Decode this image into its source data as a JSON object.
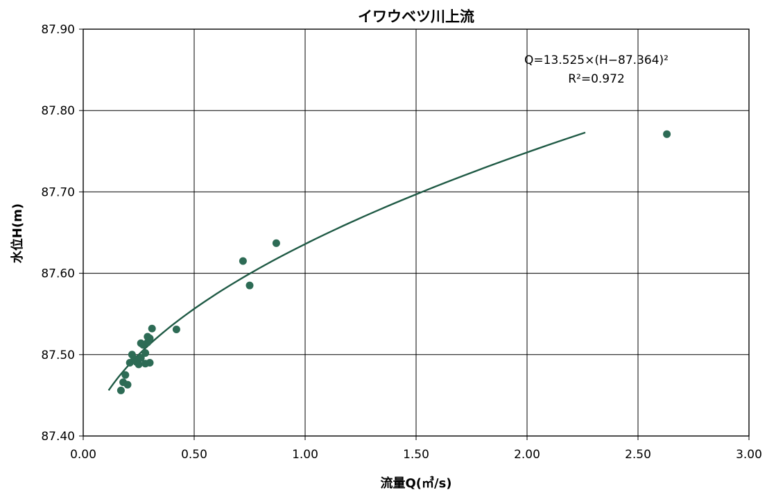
{
  "chart_data": {
    "type": "scatter",
    "title": "イワウベツ川上流",
    "xlabel": "流量Q(㎥/s)",
    "ylabel": "水位H(m)",
    "xlim": [
      0,
      3
    ],
    "ylim": [
      87.4,
      87.9
    ],
    "x_ticks": [
      "0.00",
      "0.50",
      "1.00",
      "1.50",
      "2.00",
      "2.50",
      "3.00"
    ],
    "y_ticks": [
      "87.40",
      "87.50",
      "87.60",
      "87.70",
      "87.80",
      "87.90"
    ],
    "grid": true,
    "annotation": {
      "equation": "Q=13.525×(H−87.364)²",
      "r_squared": "R²=0.972"
    },
    "colors": {
      "points": "#2d6b55",
      "curve": "#1f5a45",
      "grid": "#000000"
    },
    "series": [
      {
        "type": "scatter",
        "points": [
          {
            "x": 0.17,
            "y": 87.456
          },
          {
            "x": 0.18,
            "y": 87.466
          },
          {
            "x": 0.19,
            "y": 87.475
          },
          {
            "x": 0.2,
            "y": 87.463
          },
          {
            "x": 0.21,
            "y": 87.49
          },
          {
            "x": 0.22,
            "y": 87.5
          },
          {
            "x": 0.23,
            "y": 87.495
          },
          {
            "x": 0.24,
            "y": 87.491
          },
          {
            "x": 0.25,
            "y": 87.488
          },
          {
            "x": 0.26,
            "y": 87.496
          },
          {
            "x": 0.26,
            "y": 87.514
          },
          {
            "x": 0.27,
            "y": 87.512
          },
          {
            "x": 0.28,
            "y": 87.502
          },
          {
            "x": 0.28,
            "y": 87.489
          },
          {
            "x": 0.29,
            "y": 87.522
          },
          {
            "x": 0.29,
            "y": 87.515
          },
          {
            "x": 0.3,
            "y": 87.52
          },
          {
            "x": 0.3,
            "y": 87.49
          },
          {
            "x": 0.31,
            "y": 87.532
          },
          {
            "x": 0.42,
            "y": 87.531
          },
          {
            "x": 0.72,
            "y": 87.615
          },
          {
            "x": 0.75,
            "y": 87.585
          },
          {
            "x": 0.87,
            "y": 87.637
          },
          {
            "x": 2.63,
            "y": 87.771
          }
        ]
      },
      {
        "type": "line",
        "h_range": [
          87.456,
          87.773
        ]
      }
    ]
  }
}
